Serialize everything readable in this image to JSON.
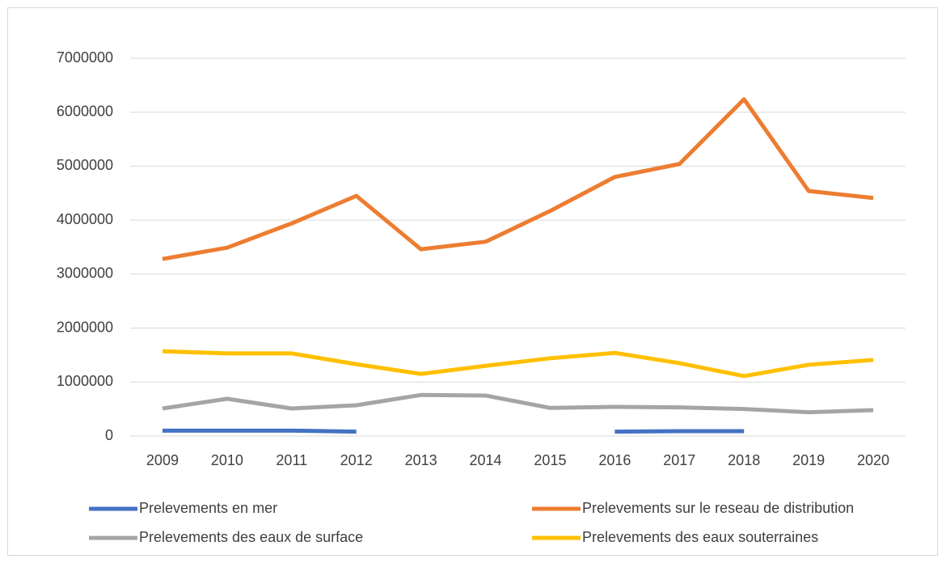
{
  "chart_data": {
    "type": "line",
    "categories": [
      "2009",
      "2010",
      "2011",
      "2012",
      "2013",
      "2014",
      "2015",
      "2016",
      "2017",
      "2018",
      "2019",
      "2020"
    ],
    "series": [
      {
        "name": "Prelevements en mer",
        "color": "#4472c4",
        "values": [
          100000,
          100000,
          100000,
          80000,
          null,
          null,
          null,
          80000,
          90000,
          90000,
          null,
          null
        ]
      },
      {
        "name": "Prelevements sur le reseau de distribution",
        "color": "#ed7d31",
        "values": [
          3280000,
          3490000,
          3940000,
          4450000,
          3460000,
          3600000,
          4170000,
          4800000,
          5040000,
          6240000,
          4540000,
          4410000
        ]
      },
      {
        "name": "Prelevements des eaux de surface",
        "color": "#a5a5a5",
        "values": [
          510000,
          690000,
          510000,
          570000,
          760000,
          750000,
          520000,
          540000,
          530000,
          500000,
          440000,
          480000
        ]
      },
      {
        "name": "Prelevements des eaux souterraines",
        "color": "#ffc000",
        "values": [
          1570000,
          1530000,
          1530000,
          1330000,
          1150000,
          1300000,
          1440000,
          1540000,
          1350000,
          1110000,
          1320000,
          1410000
        ]
      }
    ],
    "ylim": [
      0,
      7000000
    ],
    "yticks": [
      0,
      1000000,
      2000000,
      3000000,
      4000000,
      5000000,
      6000000,
      7000000
    ],
    "grid": true,
    "legend": "bottom"
  }
}
